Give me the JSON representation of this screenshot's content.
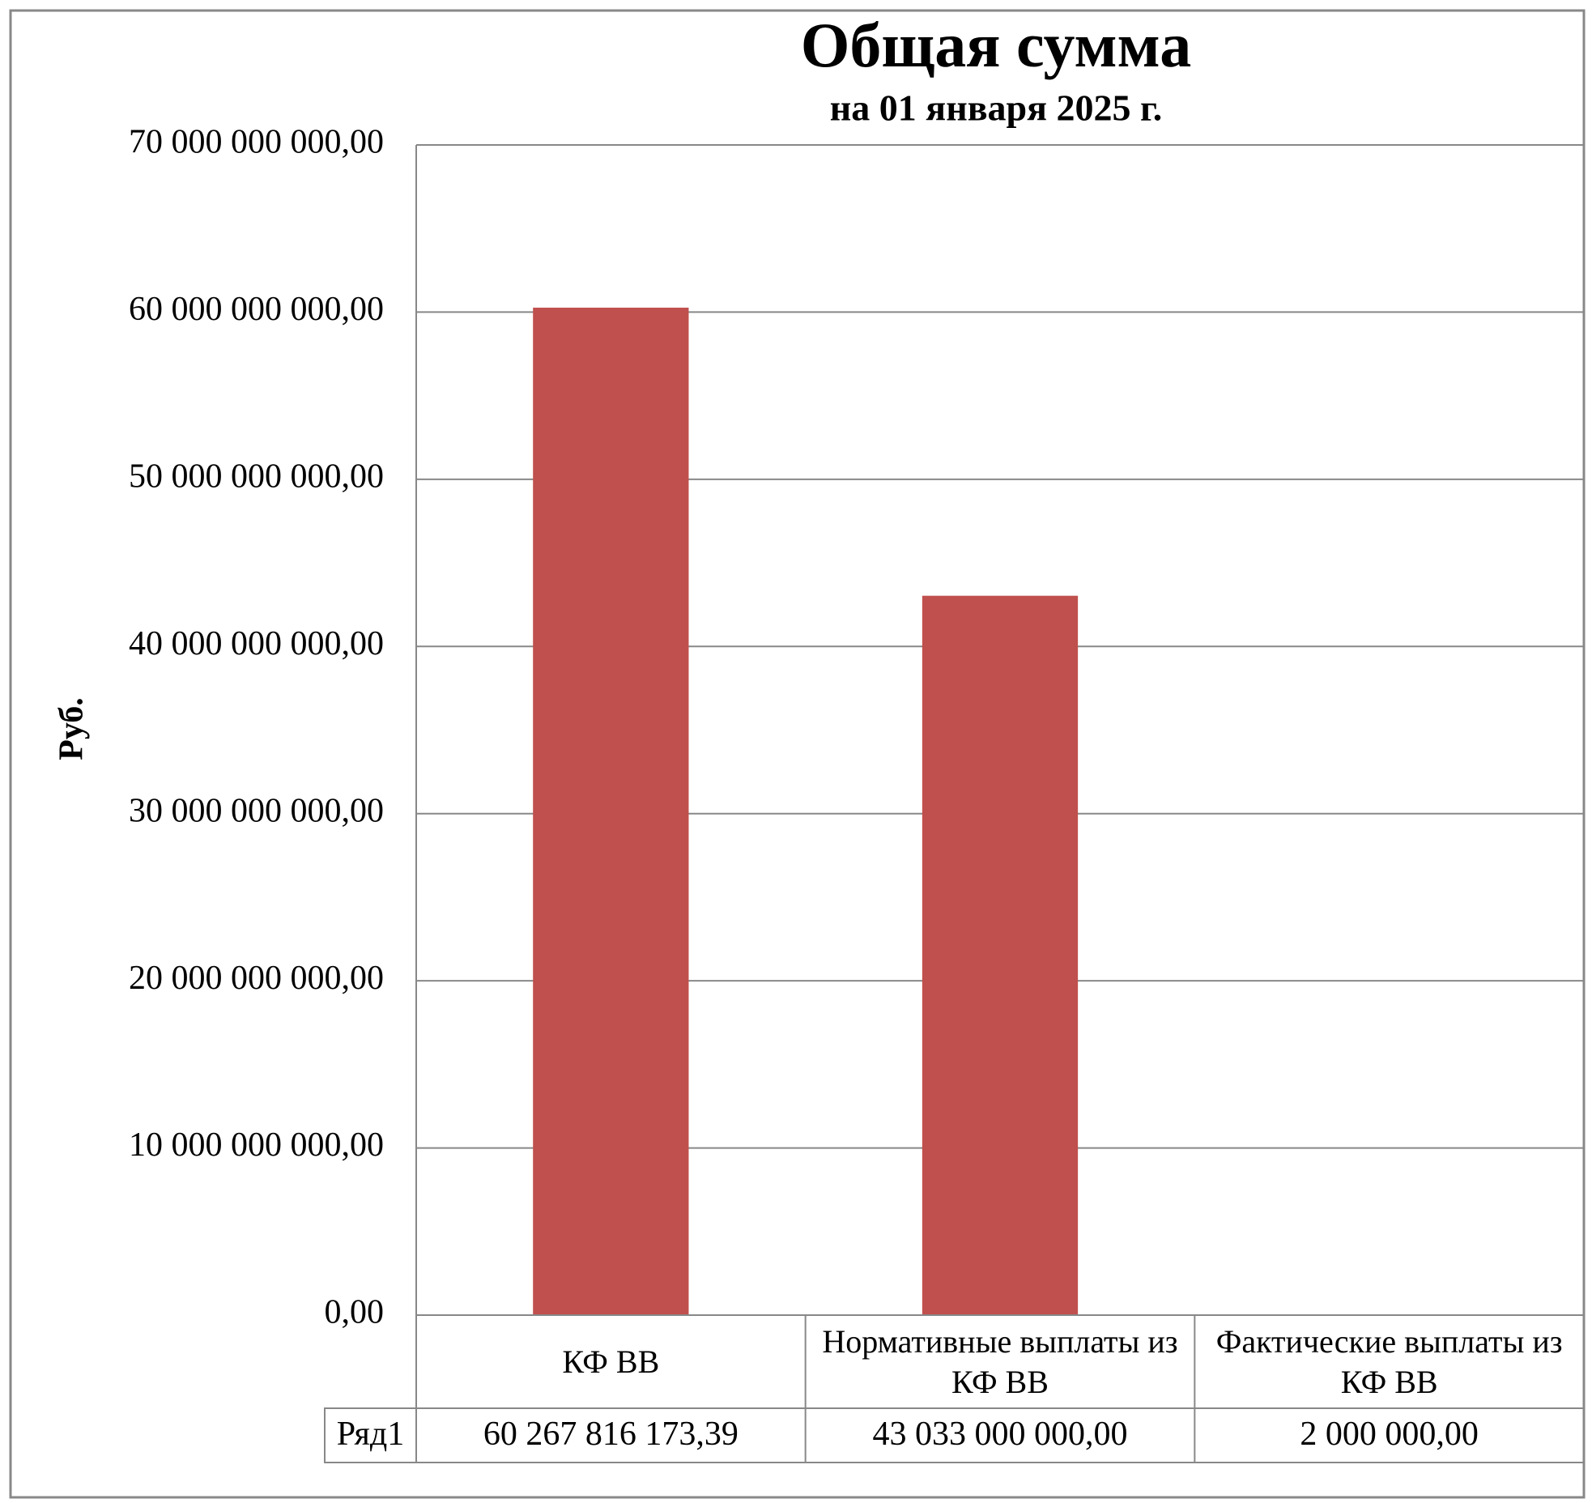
{
  "chart_data": {
    "type": "bar",
    "title": "Общая сумма",
    "subtitle": "на 01 января 2025 г.",
    "y_label": "Руб.",
    "categories": [
      "КФ ВВ",
      "Нормативные выплаты из КФ ВВ",
      "Фактические выплаты из КФ ВВ"
    ],
    "series": [
      {
        "name": "Ряд1",
        "color": "#c0504d",
        "values": [
          60267816173.39,
          43033000000,
          2000000
        ],
        "value_labels": [
          "60 267 816 173,39",
          "43 033 000 000,00",
          "2 000 000,00"
        ]
      }
    ],
    "ylim": [
      0,
      70000000000
    ],
    "yticks": [
      {
        "value": 0,
        "label": "0,00"
      },
      {
        "value": 10000000000,
        "label": "10 000 000 000,00"
      },
      {
        "value": 20000000000,
        "label": "20 000 000 000,00"
      },
      {
        "value": 30000000000,
        "label": "30 000 000 000,00"
      },
      {
        "value": 40000000000,
        "label": "40 000 000 000,00"
      },
      {
        "value": 50000000000,
        "label": "50 000 000 000,00"
      },
      {
        "value": 60000000000,
        "label": "60 000 000 000,00"
      },
      {
        "value": 70000000000,
        "label": "70 000 000 000,00"
      }
    ],
    "grid": true,
    "data_table": true
  }
}
